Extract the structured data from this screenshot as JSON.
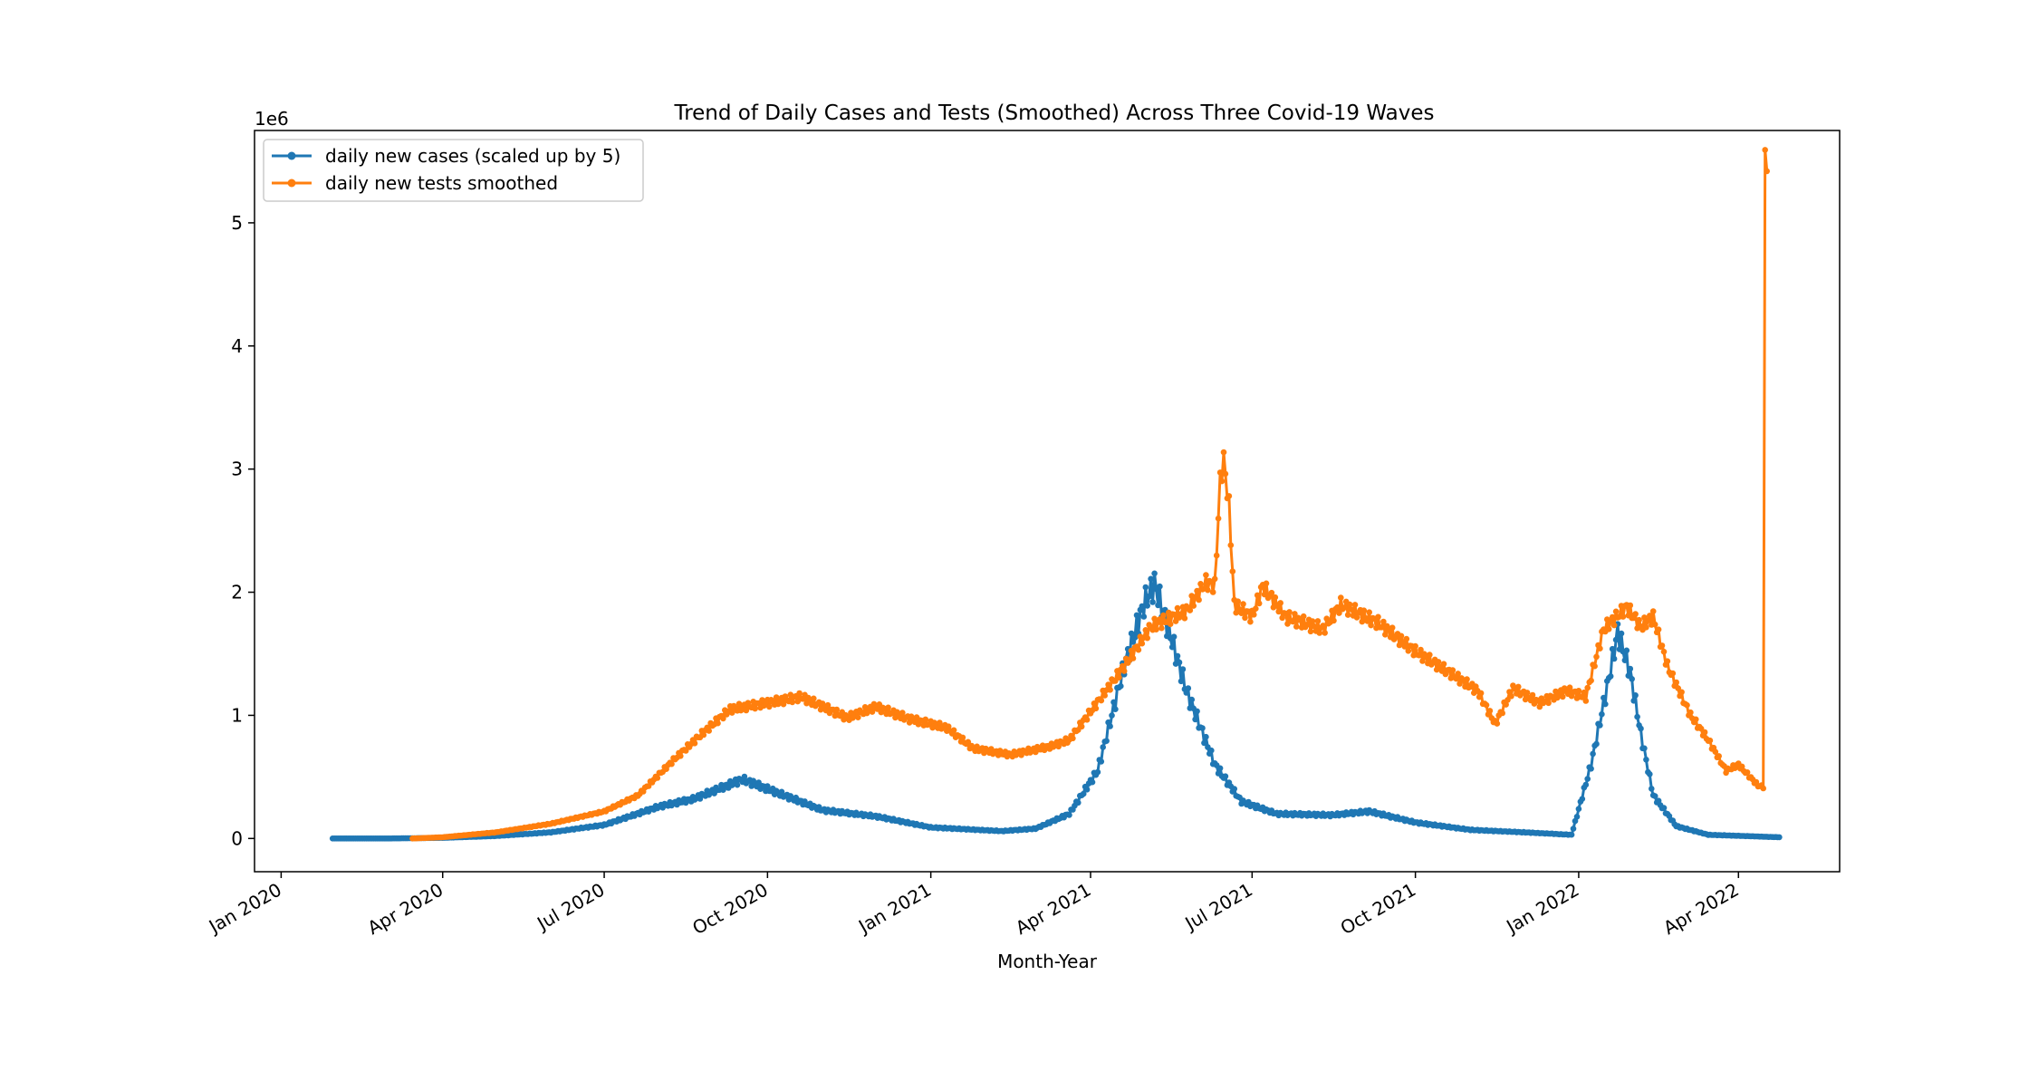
{
  "chart_data": {
    "type": "line",
    "title": "Trend of Daily Cases and Tests (Smoothed) Across Three Covid-19 Waves",
    "xlabel": "Month-Year",
    "ylabel": "",
    "y_offset_label": "1e6",
    "y_unit_multiplier": 1000000,
    "xlim": [
      "2019-12-17",
      "2022-05-28"
    ],
    "ylim": [
      -0.27,
      5.75
    ],
    "x_ticks": [
      {
        "date": "2020-01-01",
        "label": "Jan 2020"
      },
      {
        "date": "2020-04-01",
        "label": "Apr 2020"
      },
      {
        "date": "2020-07-01",
        "label": "Jul 2020"
      },
      {
        "date": "2020-10-01",
        "label": "Oct 2020"
      },
      {
        "date": "2021-01-01",
        "label": "Jan 2021"
      },
      {
        "date": "2021-04-01",
        "label": "Apr 2021"
      },
      {
        "date": "2021-07-01",
        "label": "Jul 2021"
      },
      {
        "date": "2021-10-01",
        "label": "Oct 2021"
      },
      {
        "date": "2022-01-01",
        "label": "Jan 2022"
      },
      {
        "date": "2022-04-01",
        "label": "Apr 2022"
      }
    ],
    "y_ticks": [
      {
        "value": 0,
        "label": "0"
      },
      {
        "value": 1,
        "label": "1"
      },
      {
        "value": 2,
        "label": "2"
      },
      {
        "value": 3,
        "label": "3"
      },
      {
        "value": 4,
        "label": "4"
      },
      {
        "value": 5,
        "label": "5"
      }
    ],
    "grid": false,
    "legend": "upper-left",
    "series": [
      {
        "name": "daily new cases (scaled up by 5)",
        "color": "#1f77b4",
        "start": "2020-01-30",
        "end": "2022-04-24",
        "keypoints": [
          [
            "2020-01-30",
            0.0
          ],
          [
            "2020-03-01",
            0.0
          ],
          [
            "2020-04-01",
            0.005
          ],
          [
            "2020-05-01",
            0.02
          ],
          [
            "2020-06-01",
            0.05
          ],
          [
            "2020-07-01",
            0.11
          ],
          [
            "2020-08-01",
            0.26
          ],
          [
            "2020-08-20",
            0.32
          ],
          [
            "2020-09-17",
            0.48
          ],
          [
            "2020-10-05",
            0.38
          ],
          [
            "2020-11-01",
            0.23
          ],
          [
            "2020-12-01",
            0.18
          ],
          [
            "2021-01-01",
            0.09
          ],
          [
            "2021-02-10",
            0.06
          ],
          [
            "2021-03-01",
            0.08
          ],
          [
            "2021-03-20",
            0.2
          ],
          [
            "2021-04-05",
            0.55
          ],
          [
            "2021-04-20",
            1.4
          ],
          [
            "2021-05-01",
            1.9
          ],
          [
            "2021-05-07",
            2.07
          ],
          [
            "2021-05-15",
            1.7
          ],
          [
            "2021-05-25",
            1.2
          ],
          [
            "2021-06-10",
            0.6
          ],
          [
            "2021-06-25",
            0.3
          ],
          [
            "2021-07-15",
            0.2
          ],
          [
            "2021-08-15",
            0.19
          ],
          [
            "2021-09-05",
            0.22
          ],
          [
            "2021-10-01",
            0.13
          ],
          [
            "2021-11-01",
            0.07
          ],
          [
            "2021-12-01",
            0.05
          ],
          [
            "2021-12-28",
            0.03
          ],
          [
            "2022-01-08",
            0.6
          ],
          [
            "2022-01-18",
            1.3
          ],
          [
            "2022-01-23",
            1.68
          ],
          [
            "2022-01-30",
            1.35
          ],
          [
            "2022-02-05",
            0.85
          ],
          [
            "2022-02-12",
            0.35
          ],
          [
            "2022-02-25",
            0.1
          ],
          [
            "2022-03-15",
            0.03
          ],
          [
            "2022-04-24",
            0.01
          ]
        ]
      },
      {
        "name": "daily new tests smoothed",
        "color": "#ff7f0e",
        "start": "2020-03-15",
        "end": "2022-04-17",
        "keypoints": [
          [
            "2020-03-15",
            0.0
          ],
          [
            "2020-04-01",
            0.01
          ],
          [
            "2020-05-01",
            0.05
          ],
          [
            "2020-06-01",
            0.12
          ],
          [
            "2020-07-01",
            0.22
          ],
          [
            "2020-07-20",
            0.35
          ],
          [
            "2020-08-10",
            0.65
          ],
          [
            "2020-08-25",
            0.85
          ],
          [
            "2020-09-10",
            1.05
          ],
          [
            "2020-10-01",
            1.1
          ],
          [
            "2020-10-20",
            1.15
          ],
          [
            "2020-11-15",
            0.98
          ],
          [
            "2020-12-01",
            1.07
          ],
          [
            "2020-12-20",
            0.97
          ],
          [
            "2021-01-10",
            0.9
          ],
          [
            "2021-01-25",
            0.73
          ],
          [
            "2021-02-15",
            0.68
          ],
          [
            "2021-03-10",
            0.75
          ],
          [
            "2021-03-20",
            0.8
          ],
          [
            "2021-04-01",
            1.03
          ],
          [
            "2021-04-20",
            1.4
          ],
          [
            "2021-05-05",
            1.72
          ],
          [
            "2021-05-25",
            1.85
          ],
          [
            "2021-06-05",
            2.08
          ],
          [
            "2021-06-10",
            2.05
          ],
          [
            "2021-06-13",
            2.9
          ],
          [
            "2021-06-15",
            3.08
          ],
          [
            "2021-06-18",
            2.7
          ],
          [
            "2021-06-21",
            1.9
          ],
          [
            "2021-07-01",
            1.8
          ],
          [
            "2021-07-07",
            2.05
          ],
          [
            "2021-07-20",
            1.8
          ],
          [
            "2021-08-10",
            1.7
          ],
          [
            "2021-08-20",
            1.9
          ],
          [
            "2021-09-10",
            1.75
          ],
          [
            "2021-10-01",
            1.52
          ],
          [
            "2021-10-20",
            1.35
          ],
          [
            "2021-11-05",
            1.2
          ],
          [
            "2021-11-15",
            0.93
          ],
          [
            "2021-11-25",
            1.22
          ],
          [
            "2021-12-10",
            1.1
          ],
          [
            "2021-12-25",
            1.2
          ],
          [
            "2022-01-05",
            1.15
          ],
          [
            "2022-01-15",
            1.7
          ],
          [
            "2022-01-28",
            1.88
          ],
          [
            "2022-02-05",
            1.72
          ],
          [
            "2022-02-12",
            1.8
          ],
          [
            "2022-02-20",
            1.4
          ],
          [
            "2022-03-05",
            1.0
          ],
          [
            "2022-03-15",
            0.8
          ],
          [
            "2022-03-25",
            0.55
          ],
          [
            "2022-04-01",
            0.6
          ],
          [
            "2022-04-12",
            0.43
          ],
          [
            "2022-04-15",
            0.42
          ],
          [
            "2022-04-16",
            5.48
          ],
          [
            "2022-04-17",
            5.42
          ]
        ]
      }
    ]
  }
}
